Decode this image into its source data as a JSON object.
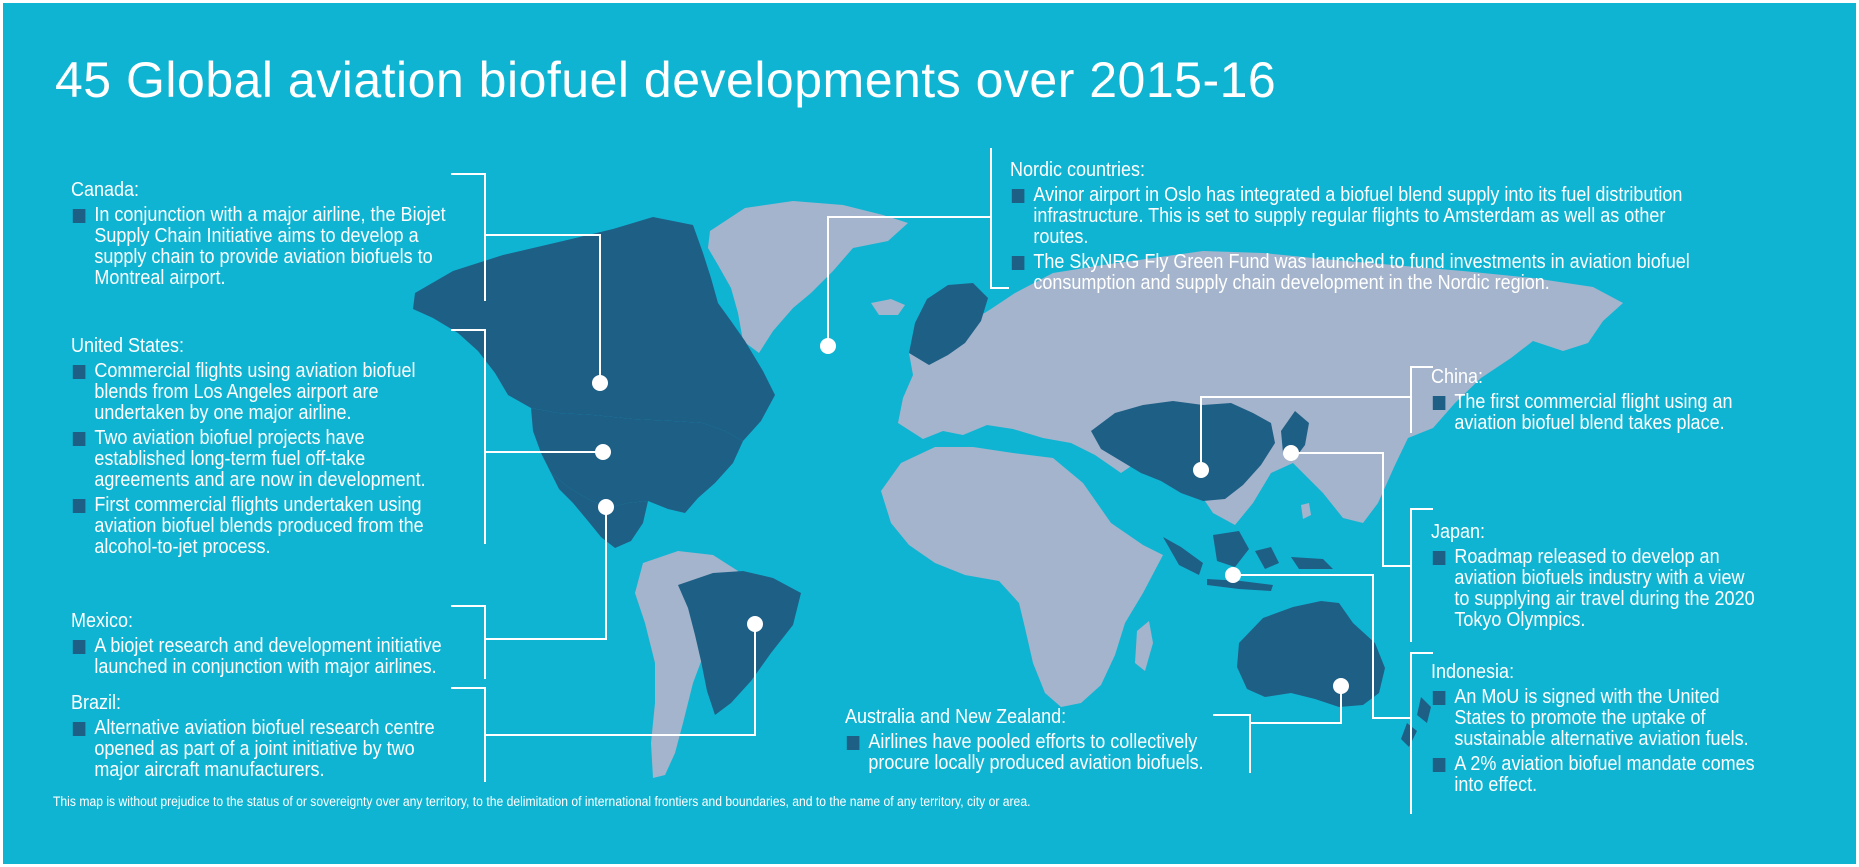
{
  "title": "45 Global aviation biofuel developments over 2015-16",
  "colors": {
    "background": "#0fb4d3",
    "land": "#a4b4cc",
    "highlighted_land": "#1e5f86",
    "bullet": "#1e5f86",
    "text": "#ffffff"
  },
  "highlighted_countries": [
    "Canada",
    "United States",
    "Mexico",
    "Brazil",
    "Norway",
    "Sweden",
    "Finland",
    "China",
    "Japan",
    "Indonesia",
    "Australia",
    "New Zealand"
  ],
  "regions": {
    "canada": {
      "name": "Canada:",
      "bullets": [
        "In conjunction with a major airline, the Biojet Supply Chain Initiative aims to develop a supply chain to provide aviation biofuels to Montreal airport."
      ]
    },
    "united_states": {
      "name": "United States:",
      "bullets": [
        "Commercial flights using aviation biofuel blends from Los Angeles airport are undertaken by one major airline.",
        "Two aviation biofuel projects have established long-term fuel off-take agreements and are now in development.",
        "First commercial flights undertaken using aviation biofuel blends produced from the alcohol-to-jet process."
      ]
    },
    "mexico": {
      "name": "Mexico:",
      "bullets": [
        "A biojet research and development initiative launched in conjunction with major airlines."
      ]
    },
    "brazil": {
      "name": "Brazil:",
      "bullets": [
        "Alternative aviation biofuel research centre opened as part of a joint initiative by two major aircraft manufacturers."
      ]
    },
    "nordic": {
      "name": "Nordic countries:",
      "bullets": [
        "Avinor airport in Oslo has integrated a biofuel blend supply into its fuel distribution infrastructure. This is set to supply regular flights to Amsterdam as well as other routes.",
        "The SkyNRG Fly Green Fund was launched to fund investments in aviation biofuel consumption and supply chain development in the Nordic region."
      ]
    },
    "china": {
      "name": "China:",
      "bullets": [
        "The first commercial flight using an aviation biofuel blend takes place."
      ]
    },
    "japan": {
      "name": "Japan:",
      "bullets": [
        "Roadmap released to develop an aviation biofuels industry with a view to supplying air travel during the 2020 Tokyo Olympics."
      ]
    },
    "australia_nz": {
      "name": "Australia and New Zealand:",
      "bullets": [
        "Airlines have pooled efforts to collectively procure locally produced aviation biofuels."
      ]
    },
    "indonesia": {
      "name": "Indonesia:",
      "bullets": [
        "An MoU is signed with the United States to promote the uptake of sustainable alternative aviation fuels.",
        "A 2% aviation biofuel mandate comes into effect."
      ]
    }
  },
  "disclaimer": "This map is without prejudice to the status of or sovereignty over any territory, to the delimitation of international frontiers and boundaries, and to the name of any territory, city or area."
}
